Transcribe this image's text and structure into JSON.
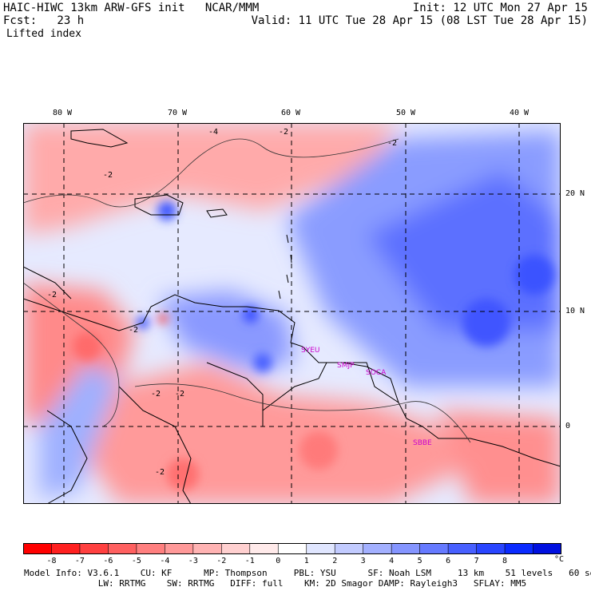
{
  "header": {
    "line1_left": "HAIC-HIWC 13km ARW-GFS init   NCAR/MMM",
    "line2_left": "Fcst:   23 h",
    "line3_left": "Lifted index",
    "line1_right": "Init: 12 UTC Mon 27 Apr 15",
    "line2_right": "Valid: 11 UTC Tue 28 Apr 15 (08 LST Tue 28 Apr 15)"
  },
  "map": {
    "lon_ticks": [
      "80 W",
      "70 W",
      "60 W",
      "50 W",
      "40 W"
    ],
    "lat_ticks": [
      "20 N",
      "10 N",
      "0"
    ],
    "station_labels": [
      "SYEU",
      "SMJP",
      "SOCA",
      "SBBE"
    ],
    "contour_labels": [
      "-4",
      "-2",
      "-2",
      "-2",
      "-2",
      "-2",
      "-2",
      "-2",
      "-2"
    ]
  },
  "colorbar": {
    "labels": [
      "-8",
      "-7",
      "-6",
      "-5",
      "-4",
      "-3",
      "-2",
      "-1",
      "0",
      "1",
      "2",
      "3",
      "4",
      "5",
      "6",
      "7",
      "8"
    ],
    "unit": "°C",
    "colors": [
      "#ff0000",
      "#ff2020",
      "#ff4040",
      "#ff6060",
      "#ff7f7f",
      "#ff9999",
      "#ffb3b3",
      "#ffd0d0",
      "#ffeaea",
      "#ffffff",
      "#e0e6ff",
      "#c2cbff",
      "#a3b0ff",
      "#8595ff",
      "#667aff",
      "#4860ff",
      "#2945ff",
      "#0a2aff",
      "#0010e0"
    ]
  },
  "footer": {
    "line1": "Model Info: V3.6.1    CU: KF      MP: Thompson     PBL: YSU      SF: Noah LSM     13 km    51 levels   60 sec",
    "line2": "              LW: RRTMG    SW: RRTMG   DIFF: full    KM: 2D Smagor DAMP: Rayleigh3   SFLAY: MM5"
  }
}
